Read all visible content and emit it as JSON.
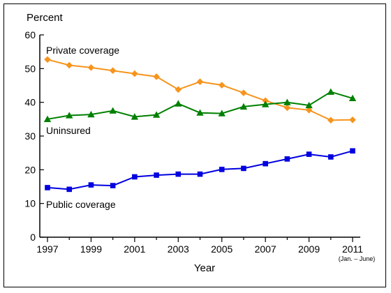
{
  "chart_data": {
    "type": "line",
    "title": "",
    "xlabel": "Year",
    "ylabel": "Percent",
    "ylim": [
      0,
      60
    ],
    "xlim": [
      1997,
      2011
    ],
    "yticks": [
      0,
      10,
      20,
      30,
      40,
      50,
      60
    ],
    "xticks": [
      1997,
      1999,
      2001,
      2003,
      2005,
      2007,
      2009,
      2011
    ],
    "x_note": "(Jan. – June)",
    "grid": false,
    "legend": "inline labels",
    "x": [
      1997,
      1998,
      1999,
      2000,
      2001,
      2002,
      2003,
      2004,
      2005,
      2006,
      2007,
      2008,
      2009,
      2010,
      2011
    ],
    "series": [
      {
        "name": "Private coverage",
        "color": "#F7941D",
        "marker": "diamond",
        "values": [
          52.7,
          51.0,
          50.3,
          49.4,
          48.5,
          47.6,
          43.8,
          46.1,
          45.1,
          42.8,
          40.5,
          38.4,
          37.7,
          34.7,
          34.8
        ]
      },
      {
        "name": "Uninsured",
        "color": "#008000",
        "marker": "triangle",
        "values": [
          35.0,
          36.1,
          36.4,
          37.5,
          35.7,
          36.3,
          39.6,
          36.9,
          36.7,
          38.7,
          39.4,
          40.0,
          39.1,
          43.1,
          41.2
        ]
      },
      {
        "name": "Public coverage",
        "color": "#0000E0",
        "marker": "square",
        "values": [
          14.7,
          14.2,
          15.5,
          15.3,
          17.9,
          18.4,
          18.7,
          18.7,
          20.1,
          20.4,
          21.8,
          23.2,
          24.6,
          23.8,
          25.6
        ]
      }
    ]
  }
}
